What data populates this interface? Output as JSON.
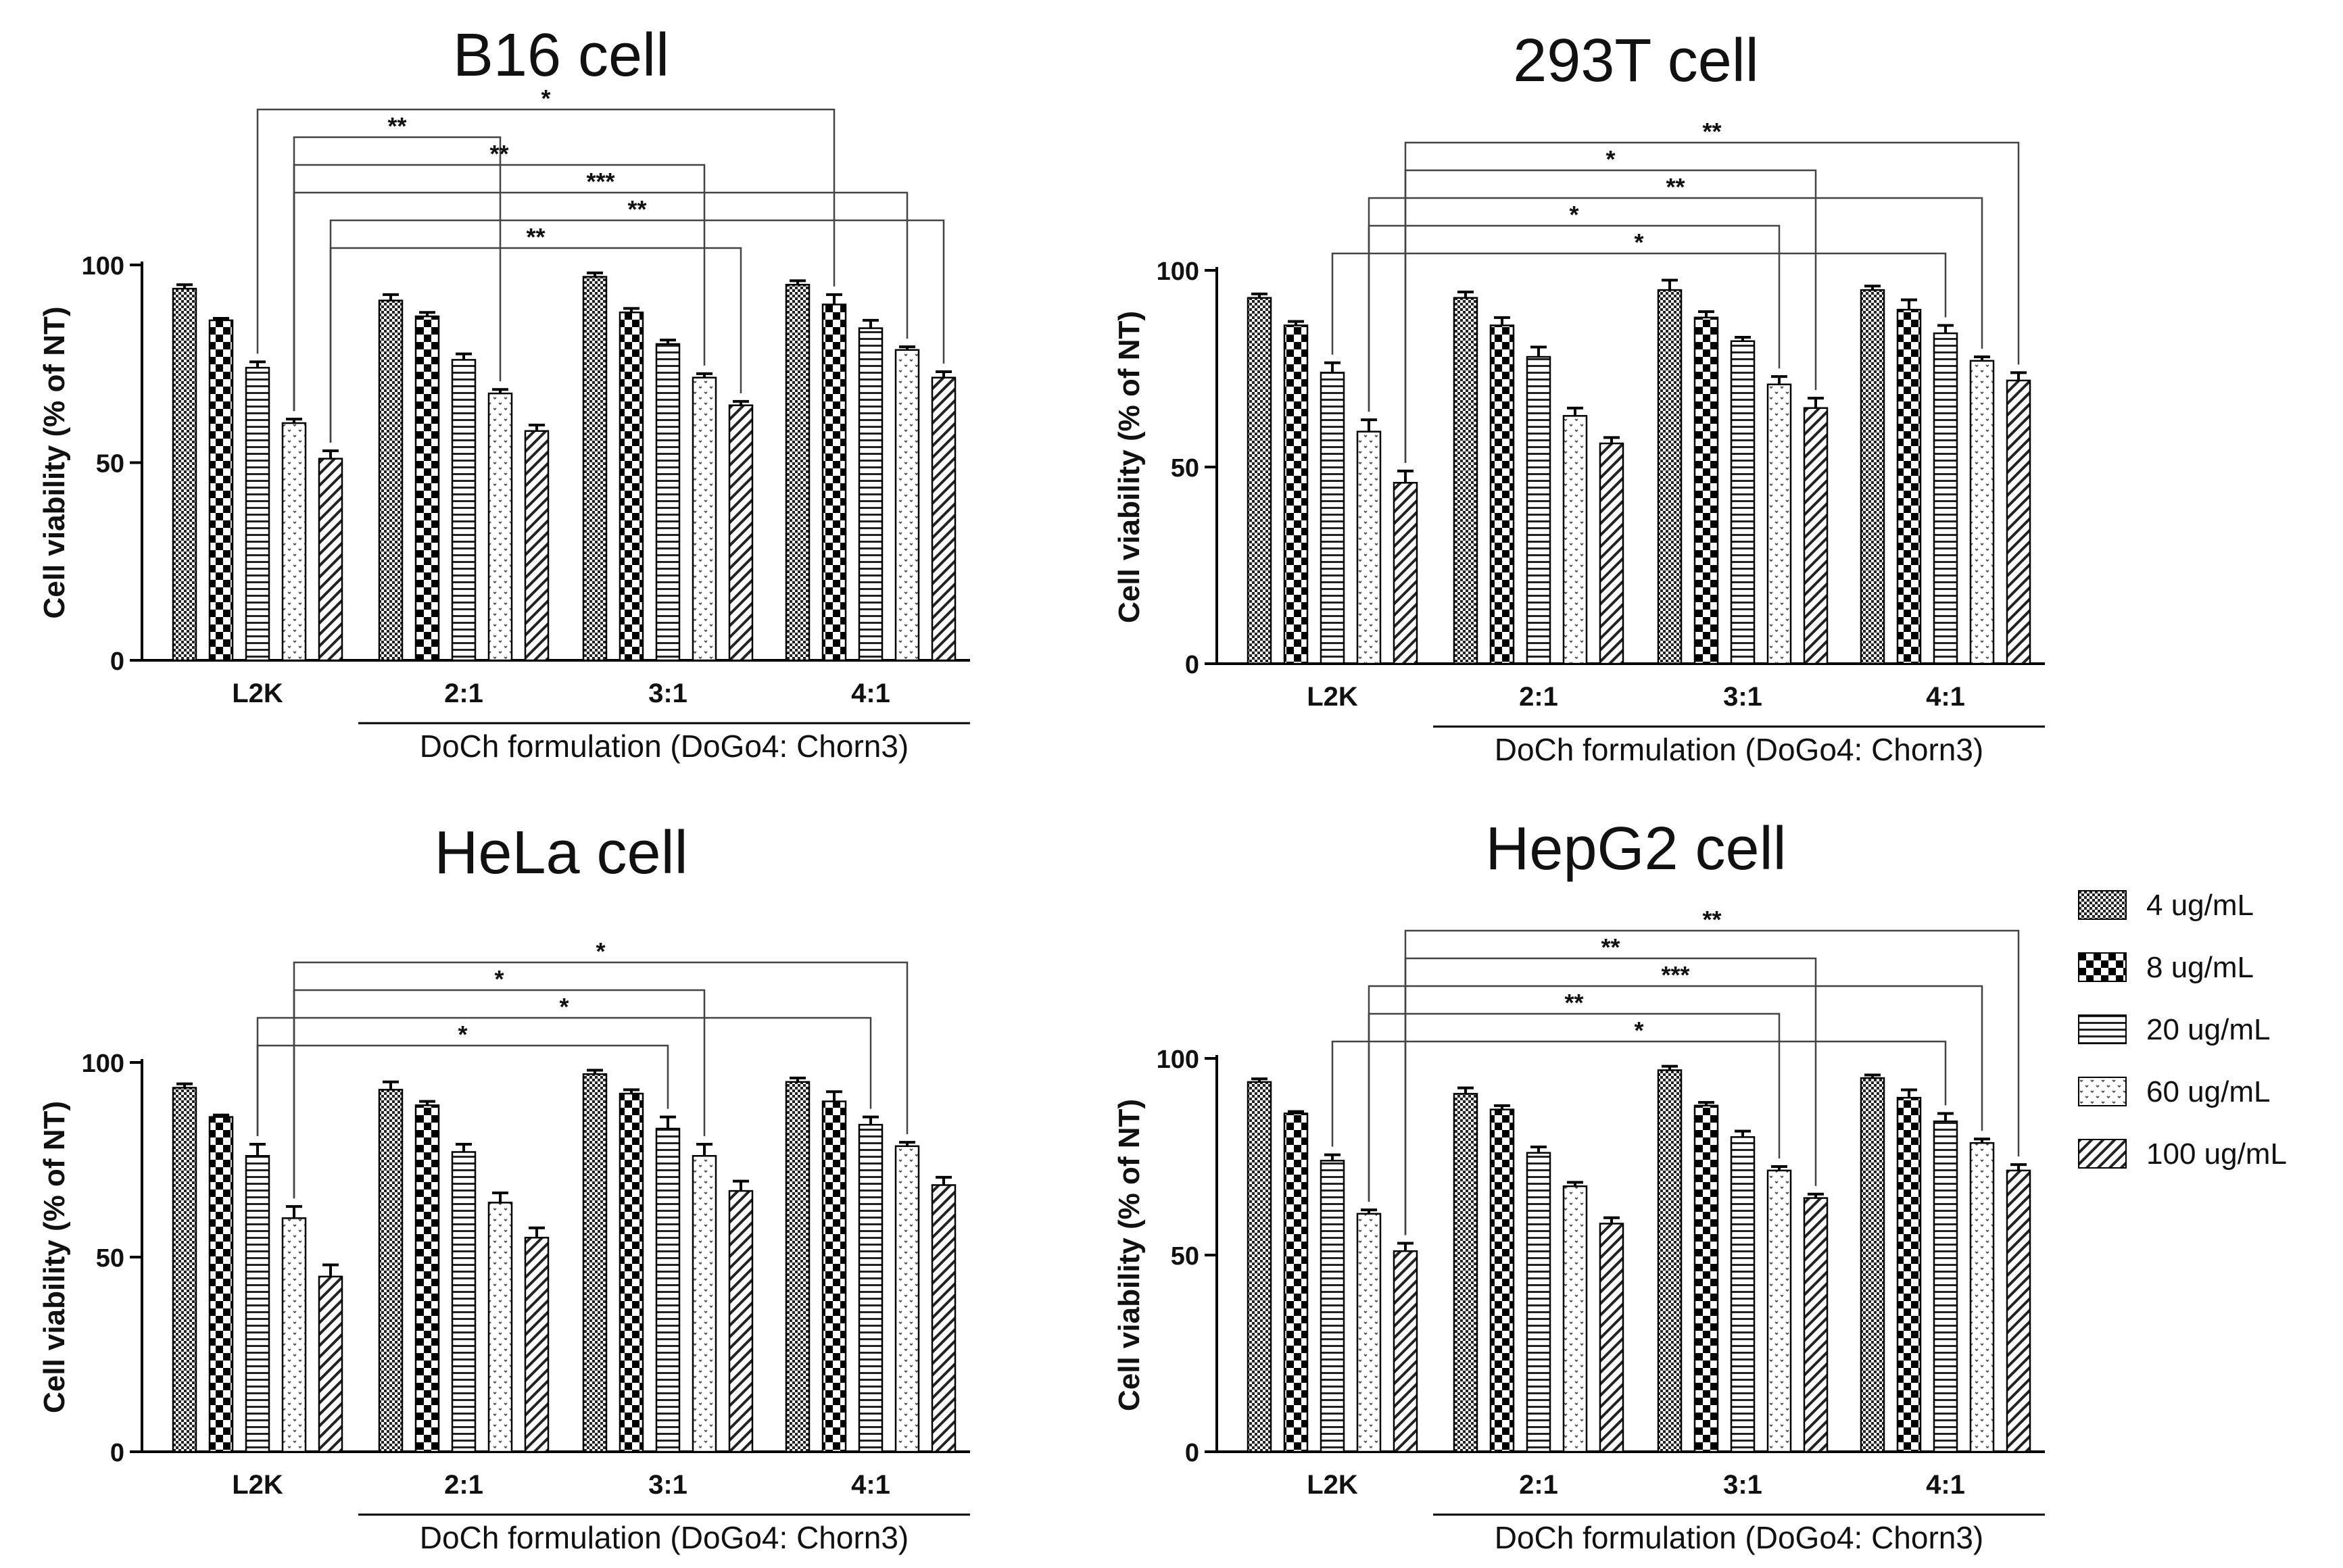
{
  "chart_data": [
    {
      "type": "bar",
      "title": "B16 cell",
      "ylabel": "Cell viability (% of NT)",
      "xgroup_label": "DoCh formulation (DoGo4: Chorn3)",
      "categories": [
        "L2K",
        "2:1",
        "3:1",
        "4:1"
      ],
      "ylim": [
        0,
        100
      ],
      "yticks": [
        0,
        50,
        100
      ],
      "series": [
        {
          "name": "4 ug/mL",
          "values": [
            94,
            91,
            97,
            95
          ],
          "errors": [
            1,
            1.5,
            1,
            1
          ]
        },
        {
          "name": "8 ug/mL",
          "values": [
            86,
            87,
            88,
            90
          ],
          "errors": [
            0.5,
            1,
            1,
            2.5
          ]
        },
        {
          "name": "20 ug/mL",
          "values": [
            74,
            76,
            80,
            84
          ],
          "errors": [
            1.5,
            1.5,
            1,
            2
          ]
        },
        {
          "name": "60 ug/mL",
          "values": [
            60,
            67.5,
            71.5,
            78.5
          ],
          "errors": [
            1,
            1,
            1,
            0.8
          ]
        },
        {
          "name": "100 ug/mL",
          "values": [
            51,
            58,
            64.5,
            71.5
          ],
          "errors": [
            2,
            1.5,
            1,
            1.5
          ]
        }
      ],
      "annotations": [
        {
          "from": [
            0,
            2
          ],
          "to": [
            3,
            1
          ],
          "label": "*"
        },
        {
          "from": [
            0,
            3
          ],
          "to": [
            1,
            3
          ],
          "label": "**"
        },
        {
          "from": [
            0,
            3
          ],
          "to": [
            2,
            3
          ],
          "label": "**"
        },
        {
          "from": [
            0,
            3
          ],
          "to": [
            3,
            3
          ],
          "label": "***"
        },
        {
          "from": [
            0,
            4
          ],
          "to": [
            3,
            4
          ],
          "label": "**"
        },
        {
          "from": [
            0,
            4
          ],
          "to": [
            2,
            4
          ],
          "label": "**"
        }
      ]
    },
    {
      "type": "bar",
      "title": "293T cell",
      "ylabel": "Cell viability (% of NT)",
      "xgroup_label": "DoCh formulation (DoGo4: Chorn3)",
      "categories": [
        "L2K",
        "2:1",
        "3:1",
        "4:1"
      ],
      "ylim": [
        0,
        100
      ],
      "yticks": [
        0,
        50,
        100
      ],
      "series": [
        {
          "name": "4 ug/mL",
          "values": [
            93,
            93,
            95,
            95
          ],
          "errors": [
            1,
            1.5,
            2.5,
            1
          ]
        },
        {
          "name": "8 ug/mL",
          "values": [
            86,
            86,
            88,
            90
          ],
          "errors": [
            1,
            2,
            1.5,
            2.5
          ]
        },
        {
          "name": "20 ug/mL",
          "values": [
            74,
            78,
            82,
            84
          ],
          "errors": [
            2.5,
            2.5,
            1,
            2
          ]
        },
        {
          "name": "60 ug/mL",
          "values": [
            59,
            63,
            71,
            77
          ],
          "errors": [
            3,
            2,
            2,
            1
          ]
        },
        {
          "name": "100 ug/mL",
          "values": [
            46,
            56,
            65,
            72
          ],
          "errors": [
            3,
            1.5,
            2.5,
            2
          ]
        }
      ],
      "annotations": [
        {
          "from": [
            0,
            4
          ],
          "to": [
            3,
            4
          ],
          "label": "**"
        },
        {
          "from": [
            0,
            4
          ],
          "to": [
            2,
            4
          ],
          "label": "*"
        },
        {
          "from": [
            0,
            3
          ],
          "to": [
            3,
            3
          ],
          "label": "**"
        },
        {
          "from": [
            0,
            3
          ],
          "to": [
            2,
            3
          ],
          "label": "*"
        },
        {
          "from": [
            0,
            2
          ],
          "to": [
            3,
            2
          ],
          "label": "*"
        }
      ]
    },
    {
      "type": "bar",
      "title": "HeLa cell",
      "ylabel": "Cell viability (% of NT)",
      "xgroup_label": "DoCh formulation (DoGo4: Chorn3)",
      "categories": [
        "L2K",
        "2:1",
        "3:1",
        "4:1"
      ],
      "ylim": [
        0,
        100
      ],
      "yticks": [
        0,
        50,
        100
      ],
      "series": [
        {
          "name": "4 ug/mL",
          "values": [
            93.5,
            93,
            97,
            95
          ],
          "errors": [
            1,
            2,
            1,
            1
          ]
        },
        {
          "name": "8 ug/mL",
          "values": [
            86,
            89,
            92,
            90
          ],
          "errors": [
            0.5,
            1,
            1,
            2.5
          ]
        },
        {
          "name": "20 ug/mL",
          "values": [
            76,
            77,
            83,
            84
          ],
          "errors": [
            3,
            2,
            3,
            2
          ]
        },
        {
          "name": "60 ug/mL",
          "values": [
            60,
            64,
            76,
            78.5
          ],
          "errors": [
            3,
            2.5,
            3,
            1
          ]
        },
        {
          "name": "100 ug/mL",
          "values": [
            45,
            55,
            67,
            68.5
          ],
          "errors": [
            3,
            2.5,
            2.5,
            2
          ]
        }
      ],
      "annotations": [
        {
          "from": [
            0,
            3
          ],
          "to": [
            3,
            3
          ],
          "label": "*"
        },
        {
          "from": [
            0,
            3
          ],
          "to": [
            2,
            3
          ],
          "label": "*"
        },
        {
          "from": [
            0,
            2
          ],
          "to": [
            3,
            2
          ],
          "label": "*"
        },
        {
          "from": [
            0,
            2
          ],
          "to": [
            2,
            2
          ],
          "label": "*"
        }
      ]
    },
    {
      "type": "bar",
      "title": "HepG2 cell",
      "ylabel": "Cell viability (% of NT)",
      "xgroup_label": "DoCh formulation (DoGo4: Chorn3)",
      "categories": [
        "L2K",
        "2:1",
        "3:1",
        "4:1"
      ],
      "ylim": [
        0,
        100
      ],
      "yticks": [
        0,
        50,
        100
      ],
      "series": [
        {
          "name": "4 ug/mL",
          "values": [
            94,
            91,
            97,
            95
          ],
          "errors": [
            0.8,
            1.5,
            1,
            0.8
          ]
        },
        {
          "name": "8 ug/mL",
          "values": [
            86,
            87,
            88,
            90
          ],
          "errors": [
            0.5,
            1,
            0.8,
            2
          ]
        },
        {
          "name": "20 ug/mL",
          "values": [
            74,
            76,
            80,
            84
          ],
          "errors": [
            1.5,
            1.5,
            1.5,
            2
          ]
        },
        {
          "name": "60 ug/mL",
          "values": [
            60.5,
            67.5,
            71.5,
            78.5
          ],
          "errors": [
            1,
            1,
            1,
            1
          ]
        },
        {
          "name": "100 ug/mL",
          "values": [
            51,
            58,
            64.5,
            71.5
          ],
          "errors": [
            2,
            1.5,
            1,
            1.5
          ]
        }
      ],
      "annotations": [
        {
          "from": [
            0,
            4
          ],
          "to": [
            3,
            4
          ],
          "label": "**"
        },
        {
          "from": [
            0,
            4
          ],
          "to": [
            2,
            4
          ],
          "label": "**"
        },
        {
          "from": [
            0,
            3
          ],
          "to": [
            3,
            3
          ],
          "label": "***"
        },
        {
          "from": [
            0,
            3
          ],
          "to": [
            2,
            3
          ],
          "label": "**"
        },
        {
          "from": [
            0,
            2
          ],
          "to": [
            3,
            2
          ],
          "label": "*"
        }
      ]
    }
  ],
  "legend": {
    "items": [
      {
        "label": "4 ug/mL",
        "pattern": "checker-small"
      },
      {
        "label": "8 ug/mL",
        "pattern": "checker-large"
      },
      {
        "label": "20 ug/mL",
        "pattern": "horizontal-lines"
      },
      {
        "label": "60 ug/mL",
        "pattern": "dotted"
      },
      {
        "label": "100 ug/mL",
        "pattern": "diagonal-lines"
      }
    ]
  }
}
